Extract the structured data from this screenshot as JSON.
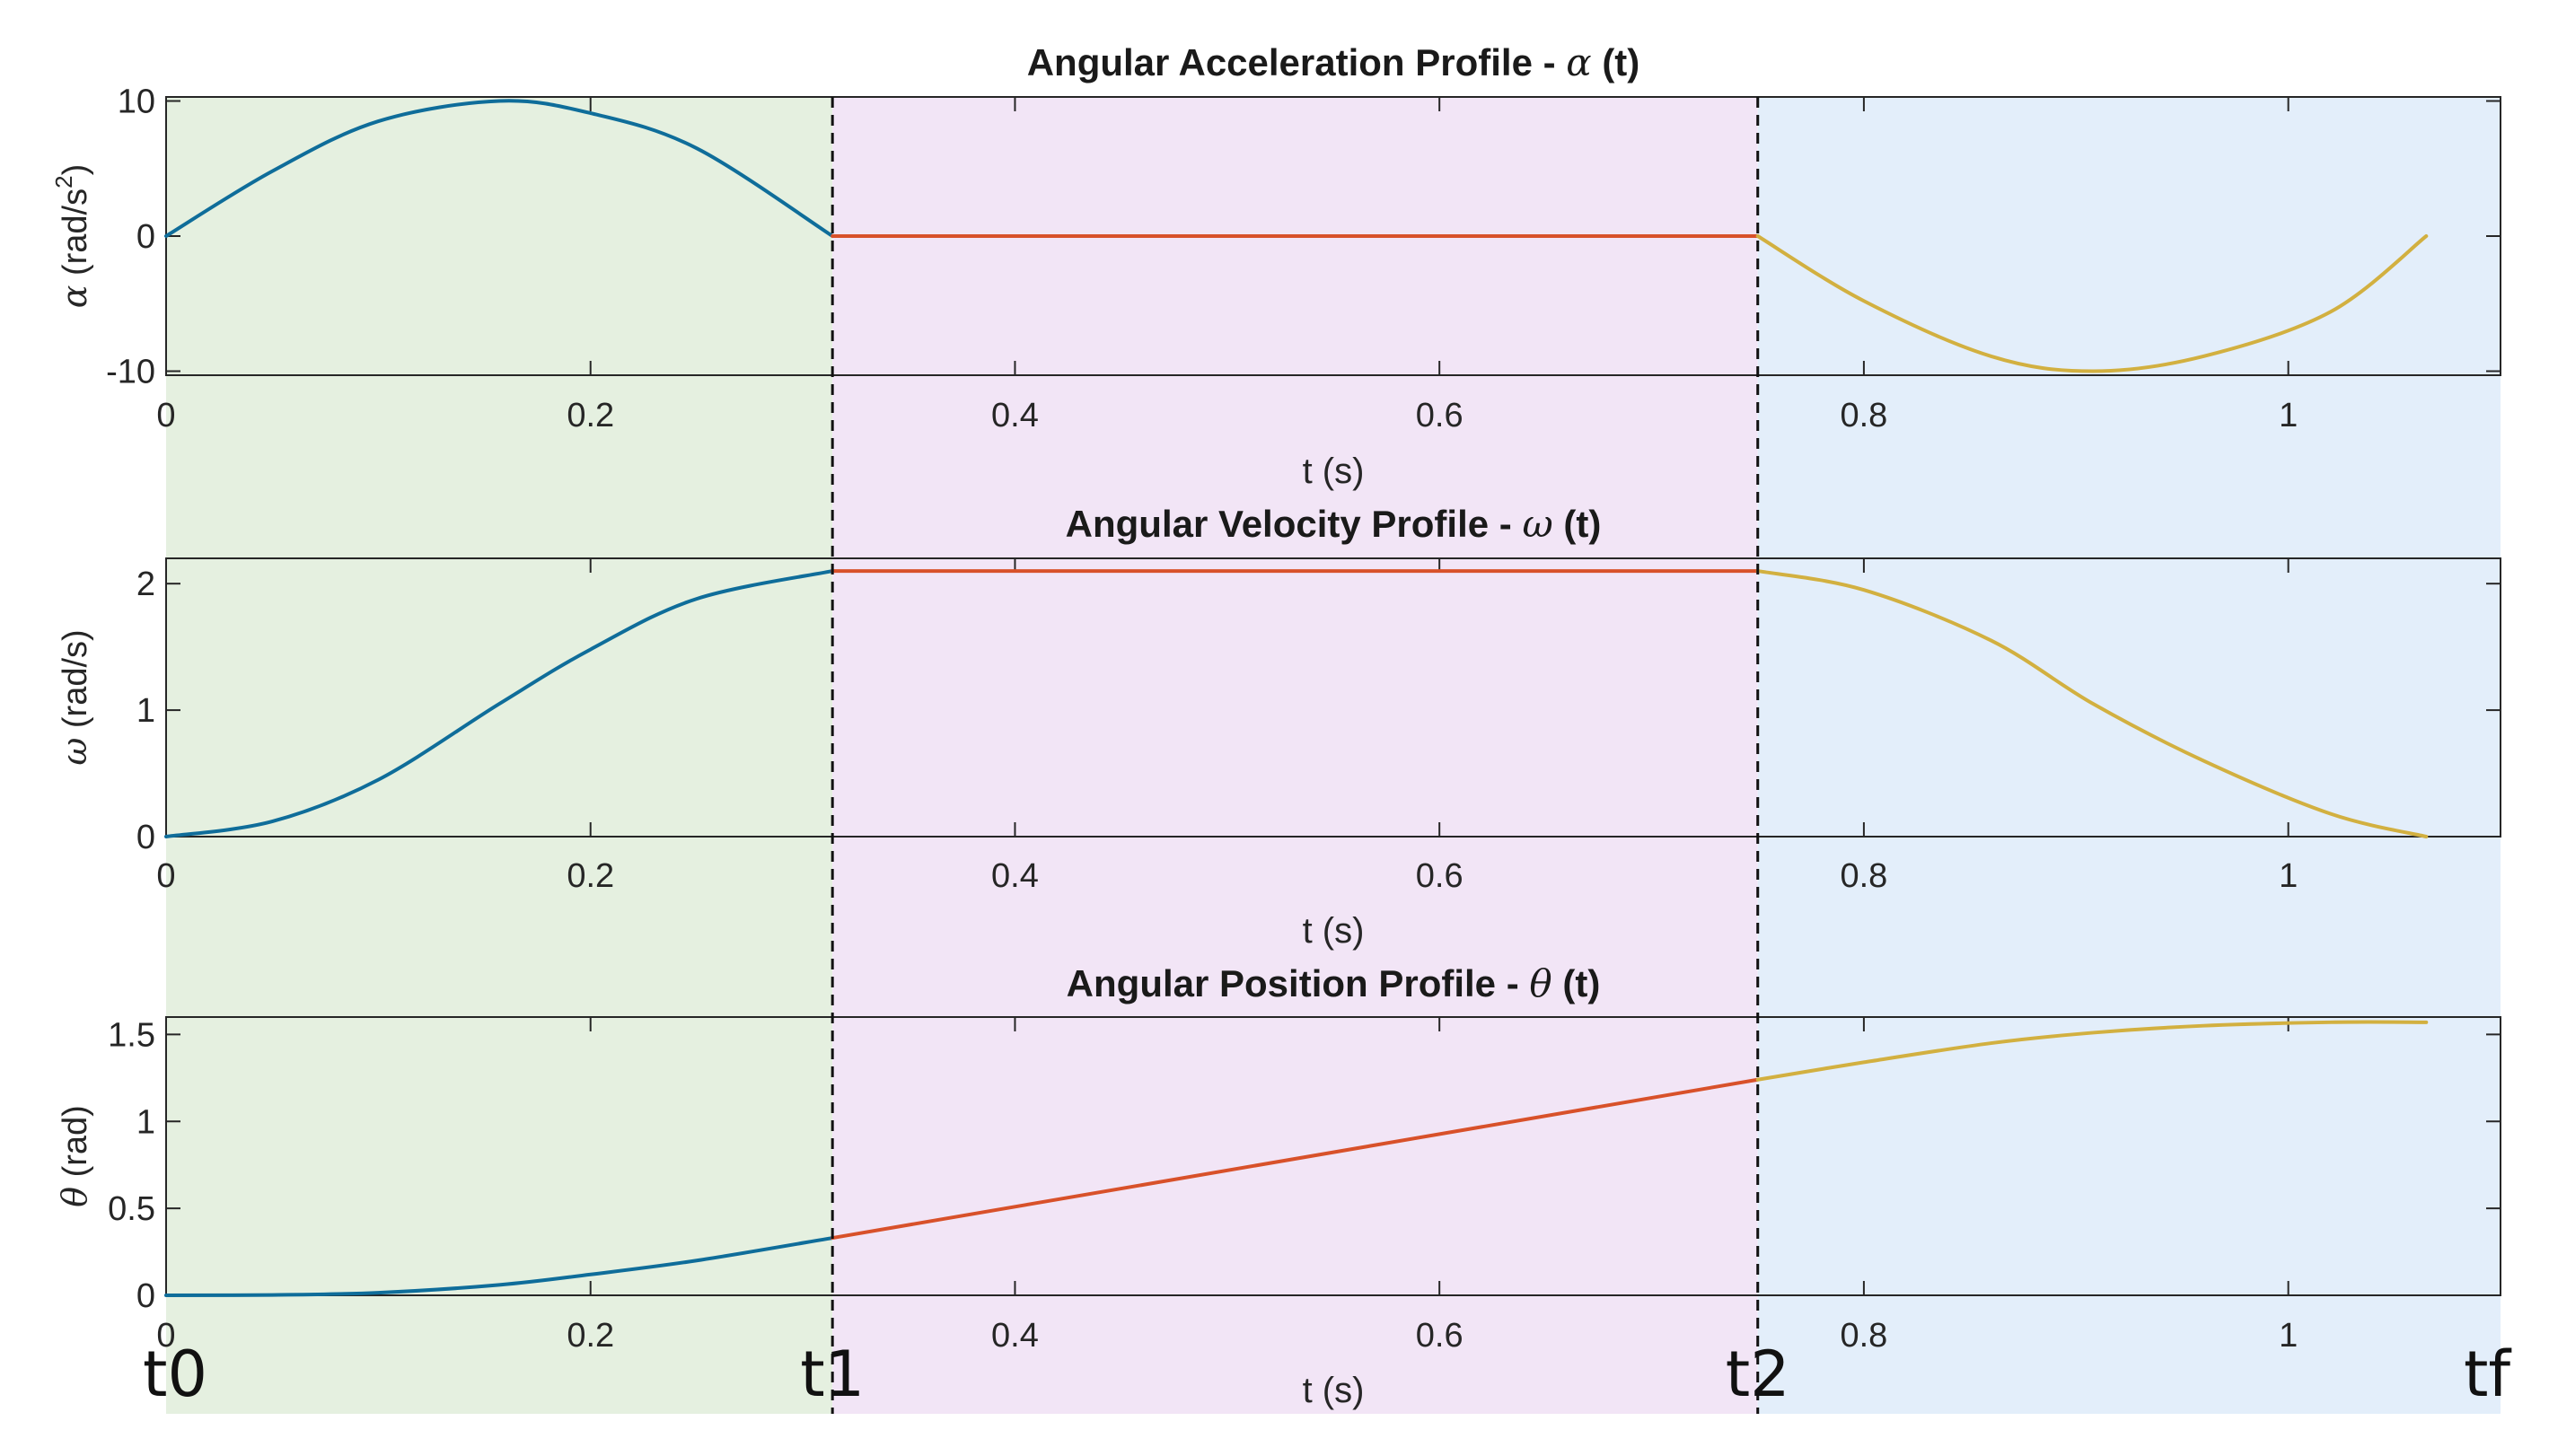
{
  "colors": {
    "phase1_bg": "#e5f0e0",
    "phase2_bg": "#f2e5f6",
    "phase3_bg": "#e3eefa",
    "phase1_line": "#0f6d9a",
    "phase2_line": "#d8512a",
    "phase3_line": "#d2b040",
    "boundary_line": "#111111"
  },
  "time_markers": [
    {
      "label": "t0",
      "t": 0
    },
    {
      "label": "t1",
      "t": 0.314
    },
    {
      "label": "t2",
      "t": 0.75
    },
    {
      "label": "tf",
      "t": 1.065
    }
  ],
  "chart_data": [
    {
      "type": "line",
      "title_text": "Angular Acceleration Profile - ",
      "title_symbol": "α",
      "title_suffix": " (t)",
      "xlabel": "t (s)",
      "ylabel_symbol": "α",
      "ylabel_text": " (rad/s",
      "ylabel_sup": "2",
      "ylabel_end": ")",
      "xlim": [
        0,
        1.1
      ],
      "ylim": [
        -10.3,
        10.3
      ],
      "xticks": [
        0,
        0.2,
        0.4,
        0.6,
        0.8,
        1
      ],
      "xtick_labels": [
        "0",
        "0.2",
        "0.4",
        "0.6",
        "0.8",
        "1"
      ],
      "yticks": [
        -10,
        0,
        10
      ],
      "ytick_labels": [
        "-10",
        "0",
        "10"
      ],
      "grid": false,
      "series": [
        {
          "x": [
            0,
            0.05,
            0.1,
            0.157,
            0.2,
            0.25,
            0.314
          ],
          "y": [
            0,
            4.8,
            8.5,
            10,
            9.1,
            6.5,
            0
          ]
        },
        {
          "x": [
            0.314,
            0.75
          ],
          "y": [
            0,
            0
          ]
        },
        {
          "x": [
            0.75,
            0.8,
            0.86,
            0.908,
            0.96,
            1.02,
            1.065
          ],
          "y": [
            0,
            -4.8,
            -8.9,
            -10,
            -8.9,
            -5.6,
            0
          ]
        }
      ]
    },
    {
      "type": "line",
      "title_text": "Angular Velocity Profile - ",
      "title_symbol": "ω",
      "title_suffix": " (t)",
      "xlabel": "t (s)",
      "ylabel_symbol": "ω",
      "ylabel_text": " (rad/s)",
      "ylabel_sup": "",
      "ylabel_end": "",
      "xlim": [
        0,
        1.1
      ],
      "ylim": [
        0,
        2.2
      ],
      "xticks": [
        0,
        0.2,
        0.4,
        0.6,
        0.8,
        1
      ],
      "xtick_labels": [
        "0",
        "0.2",
        "0.4",
        "0.6",
        "0.8",
        "1"
      ],
      "yticks": [
        0,
        1,
        2
      ],
      "ytick_labels": [
        "0",
        "1",
        "2"
      ],
      "grid": false,
      "series": [
        {
          "x": [
            0,
            0.05,
            0.1,
            0.157,
            0.2,
            0.25,
            0.314
          ],
          "y": [
            0,
            0.12,
            0.45,
            1.05,
            1.48,
            1.88,
            2.1
          ]
        },
        {
          "x": [
            0.314,
            0.75
          ],
          "y": [
            2.1,
            2.1
          ]
        },
        {
          "x": [
            0.75,
            0.8,
            0.86,
            0.908,
            0.96,
            1.02,
            1.065
          ],
          "y": [
            2.1,
            1.95,
            1.55,
            1.05,
            0.6,
            0.18,
            0
          ]
        }
      ]
    },
    {
      "type": "line",
      "title_text": "Angular Position Profile - ",
      "title_symbol": "θ",
      "title_suffix": " (t)",
      "xlabel": "t (s)",
      "ylabel_symbol": "θ",
      "ylabel_text": " (rad)",
      "ylabel_sup": "",
      "ylabel_end": "",
      "xlim": [
        0,
        1.1
      ],
      "ylim": [
        0,
        1.6
      ],
      "xticks": [
        0,
        0.2,
        0.4,
        0.6,
        0.8,
        1
      ],
      "xtick_labels": [
        "0",
        "0.2",
        "0.4",
        "0.6",
        "0.8",
        "1"
      ],
      "yticks": [
        0,
        0.5,
        1,
        1.5
      ],
      "ytick_labels": [
        "0",
        "0.5",
        "1",
        "1.5"
      ],
      "grid": false,
      "series": [
        {
          "x": [
            0,
            0.05,
            0.1,
            0.157,
            0.2,
            0.25,
            0.314
          ],
          "y": [
            0,
            0.002,
            0.015,
            0.06,
            0.12,
            0.2,
            0.33
          ]
        },
        {
          "x": [
            0.314,
            0.75
          ],
          "y": [
            0.33,
            1.24
          ]
        },
        {
          "x": [
            0.75,
            0.8,
            0.86,
            0.908,
            0.96,
            1.02,
            1.065
          ],
          "y": [
            1.24,
            1.34,
            1.45,
            1.51,
            1.55,
            1.57,
            1.57
          ]
        }
      ]
    }
  ]
}
